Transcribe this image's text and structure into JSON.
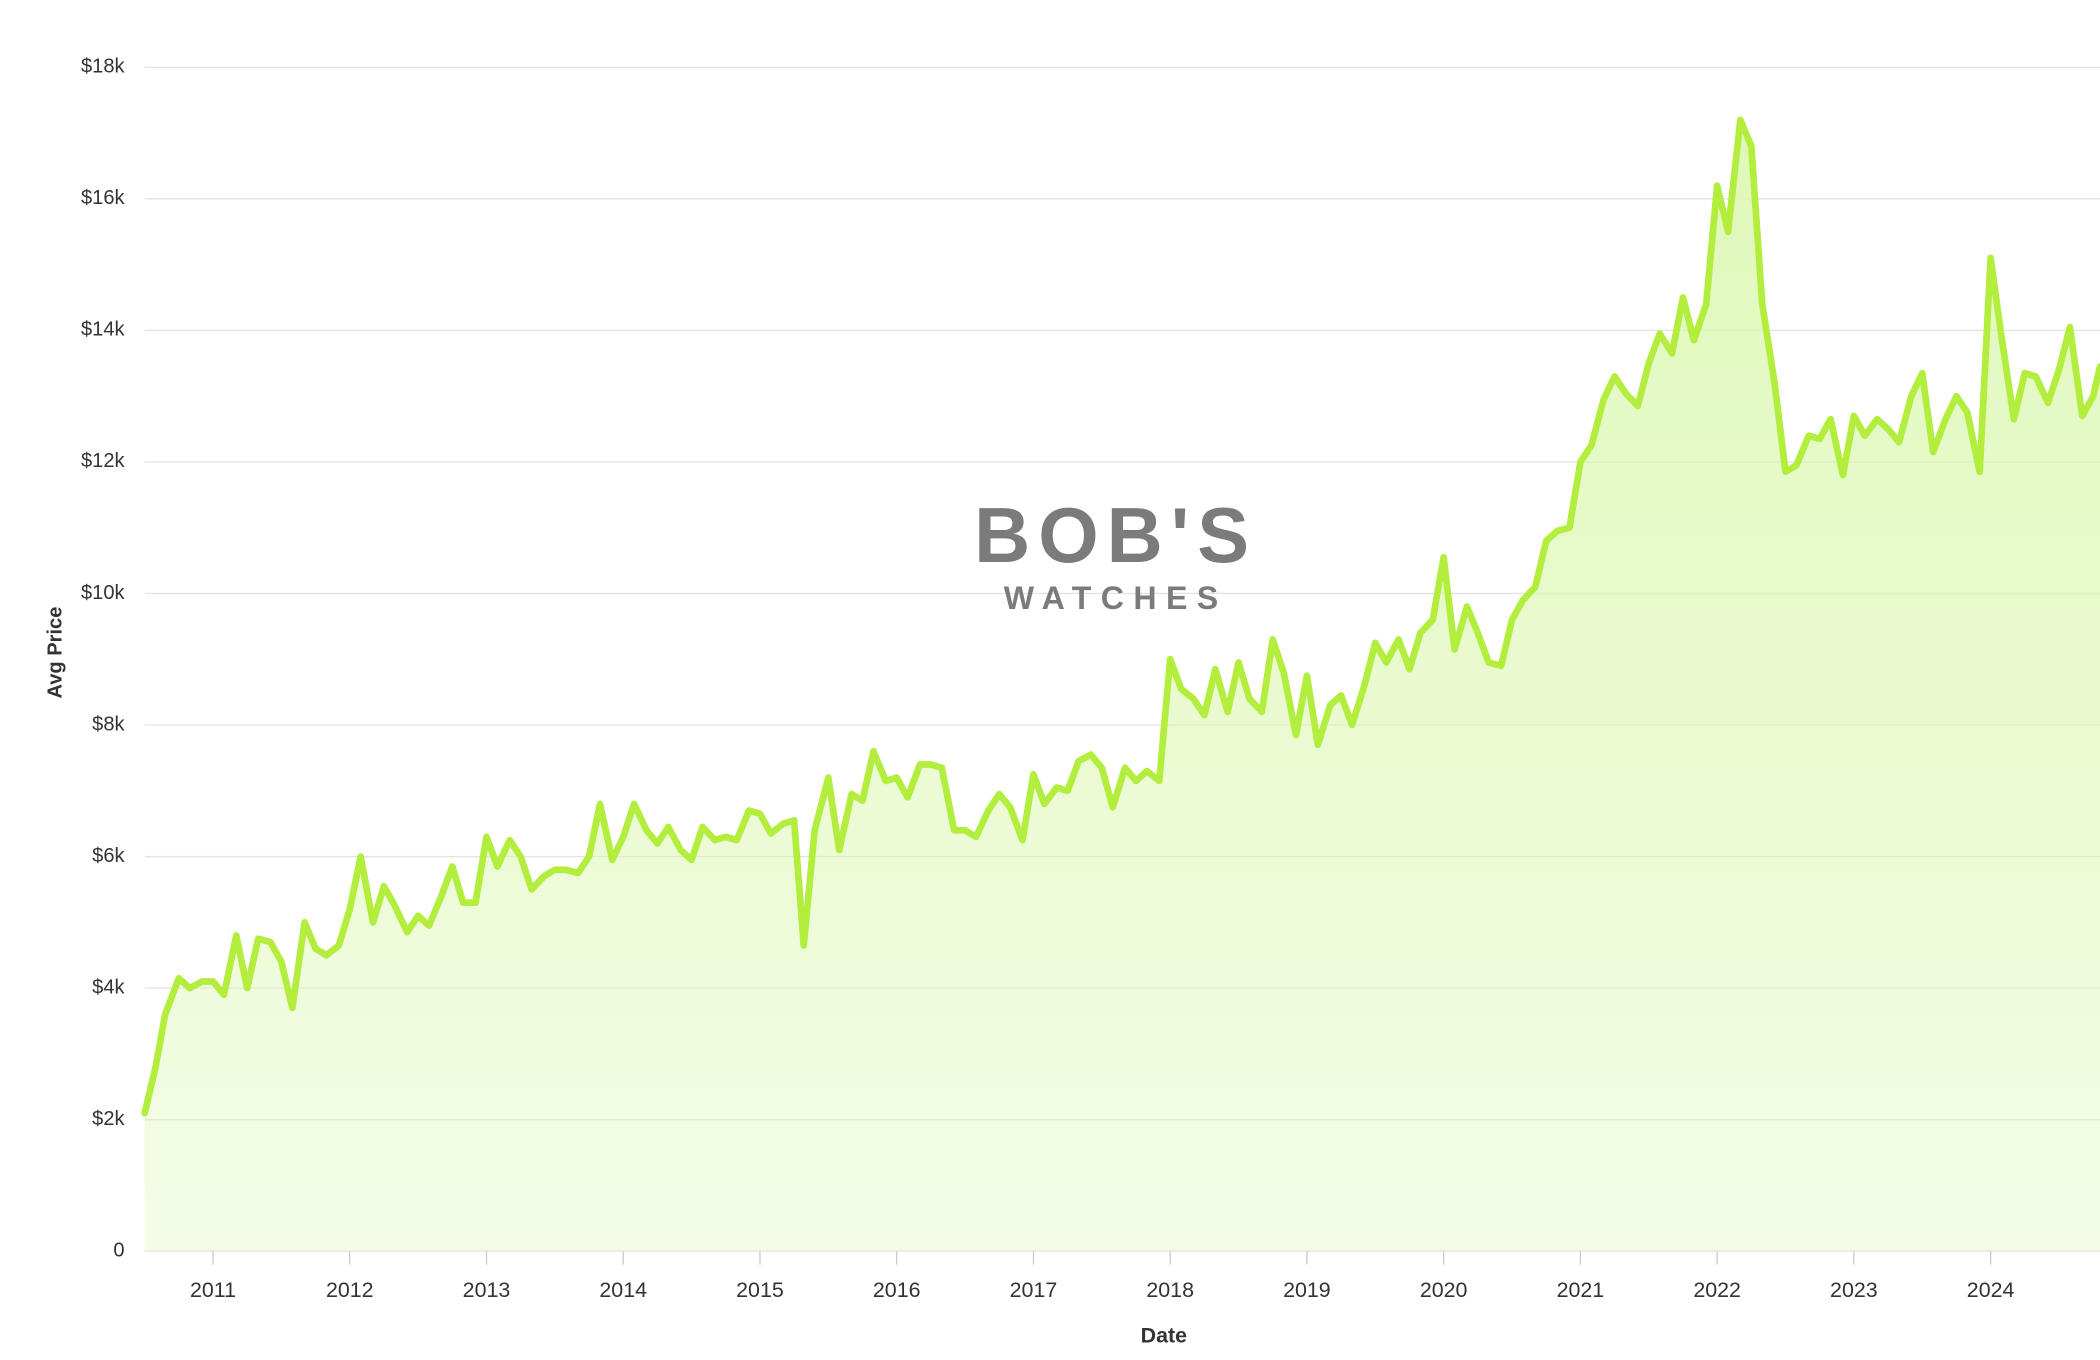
{
  "chart_data": {
    "type": "area",
    "x_label": "Date",
    "y_label": "Avg Price",
    "watermark": [
      "BOB'S",
      "WATCHES"
    ],
    "color": "#b3ee3e",
    "fill_color": "#d9f7ac",
    "grid": true,
    "xlim": [
      2010.5,
      2024.8
    ],
    "xticks": [
      2011,
      2012,
      2013,
      2014,
      2015,
      2016,
      2017,
      2018,
      2019,
      2020,
      2021,
      2022,
      2023,
      2024
    ],
    "ylim": [
      0,
      18000
    ],
    "yticks": [
      0,
      {
        "value": 2000,
        "label": "$2k"
      },
      {
        "value": 4000,
        "label": "$4k"
      },
      {
        "value": 6000,
        "label": "$6k"
      },
      {
        "value": 8000,
        "label": "$8k"
      },
      {
        "value": 10000,
        "label": "$10k"
      },
      {
        "value": 12000,
        "label": "$12k"
      },
      {
        "value": 14000,
        "label": "$14k"
      },
      {
        "value": 16000,
        "label": "$16k"
      },
      {
        "value": 18000,
        "label": "$18k"
      }
    ],
    "x": [
      2010.5,
      2010.58,
      2010.65,
      2010.75,
      2010.83,
      2010.92,
      2011.0,
      2011.08,
      2011.17,
      2011.25,
      2011.33,
      2011.42,
      2011.5,
      2011.58,
      2011.67,
      2011.75,
      2011.83,
      2011.92,
      2012.0,
      2012.08,
      2012.17,
      2012.25,
      2012.33,
      2012.42,
      2012.5,
      2012.58,
      2012.67,
      2012.75,
      2012.83,
      2012.92,
      2013.0,
      2013.08,
      2013.17,
      2013.25,
      2013.33,
      2013.42,
      2013.5,
      2013.58,
      2013.67,
      2013.75,
      2013.83,
      2013.92,
      2014.0,
      2014.08,
      2014.17,
      2014.25,
      2014.33,
      2014.42,
      2014.5,
      2014.58,
      2014.67,
      2014.75,
      2014.83,
      2014.92,
      2015.0,
      2015.08,
      2015.17,
      2015.25,
      2015.32,
      2015.4,
      2015.5,
      2015.58,
      2015.67,
      2015.75,
      2015.83,
      2015.92,
      2016.0,
      2016.08,
      2016.17,
      2016.25,
      2016.33,
      2016.42,
      2016.5,
      2016.58,
      2016.67,
      2016.75,
      2016.83,
      2016.92,
      2017.0,
      2017.08,
      2017.17,
      2017.25,
      2017.33,
      2017.42,
      2017.5,
      2017.58,
      2017.67,
      2017.75,
      2017.83,
      2017.92,
      2018.0,
      2018.08,
      2018.17,
      2018.25,
      2018.33,
      2018.42,
      2018.5,
      2018.58,
      2018.67,
      2018.75,
      2018.83,
      2018.92,
      2019.0,
      2019.08,
      2019.17,
      2019.25,
      2019.33,
      2019.42,
      2019.5,
      2019.58,
      2019.67,
      2019.75,
      2019.83,
      2019.92,
      2020.0,
      2020.08,
      2020.17,
      2020.25,
      2020.33,
      2020.42,
      2020.5,
      2020.58,
      2020.67,
      2020.75,
      2020.83,
      2020.92,
      2021.0,
      2021.08,
      2021.17,
      2021.25,
      2021.33,
      2021.42,
      2021.5,
      2021.58,
      2021.67,
      2021.75,
      2021.83,
      2021.92,
      2022.0,
      2022.08,
      2022.17,
      2022.25,
      2022.33,
      2022.42,
      2022.5,
      2022.58,
      2022.67,
      2022.75,
      2022.83,
      2022.92,
      2023.0,
      2023.08,
      2023.17,
      2023.25,
      2023.33,
      2023.42,
      2023.5,
      2023.58,
      2023.67,
      2023.75,
      2023.83,
      2023.92,
      2024.0,
      2024.08,
      2024.17,
      2024.25,
      2024.33,
      2024.42,
      2024.5,
      2024.58,
      2024.67,
      2024.75,
      2024.8
    ],
    "values": [
      2100,
      2800,
      3600,
      4150,
      4000,
      4100,
      4100,
      3900,
      4800,
      4000,
      4750,
      4700,
      4400,
      3700,
      5000,
      4600,
      4500,
      4650,
      5200,
      6000,
      5000,
      5550,
      5250,
      4850,
      5100,
      4950,
      5400,
      5850,
      5300,
      5300,
      6300,
      5850,
      6250,
      6000,
      5500,
      5700,
      5800,
      5800,
      5750,
      6000,
      6800,
      5950,
      6300,
      6800,
      6400,
      6200,
      6450,
      6100,
      5950,
      6450,
      6250,
      6300,
      6250,
      6700,
      6650,
      6350,
      6500,
      6550,
      4650,
      6400,
      7200,
      6100,
      6950,
      6850,
      7600,
      7150,
      7200,
      6900,
      7400,
      7400,
      7350,
      6400,
      6400,
      6300,
      6700,
      6950,
      6750,
      6250,
      7250,
      6800,
      7050,
      7000,
      7450,
      7550,
      7350,
      6750,
      7350,
      7150,
      7300,
      7150,
      9000,
      8550,
      8400,
      8150,
      8850,
      8200,
      8950,
      8400,
      8200,
      9300,
      8800,
      7850,
      8750,
      7700,
      8300,
      8450,
      8000,
      8600,
      9250,
      8950,
      9300,
      8850,
      9400,
      9600,
      10550,
      9150,
      9800,
      9400,
      8950,
      8900,
      9600,
      9900,
      10100,
      10800,
      10950,
      11000,
      12000,
      12250,
      12950,
      13300,
      13050,
      12850,
      13500,
      13950,
      13650,
      14500,
      13850,
      14400,
      16200,
      15500,
      17200,
      16800,
      14400,
      13200,
      11850,
      11950,
      12400,
      12350,
      12650,
      11800,
      12700,
      12400,
      12650,
      12500,
      12300,
      13000,
      13350,
      12150,
      12650,
      13000,
      12750,
      11850,
      15100,
      13900,
      12650,
      13350,
      13300,
      12900,
      13400,
      14050,
      12700,
      13000,
      13450
    ]
  }
}
